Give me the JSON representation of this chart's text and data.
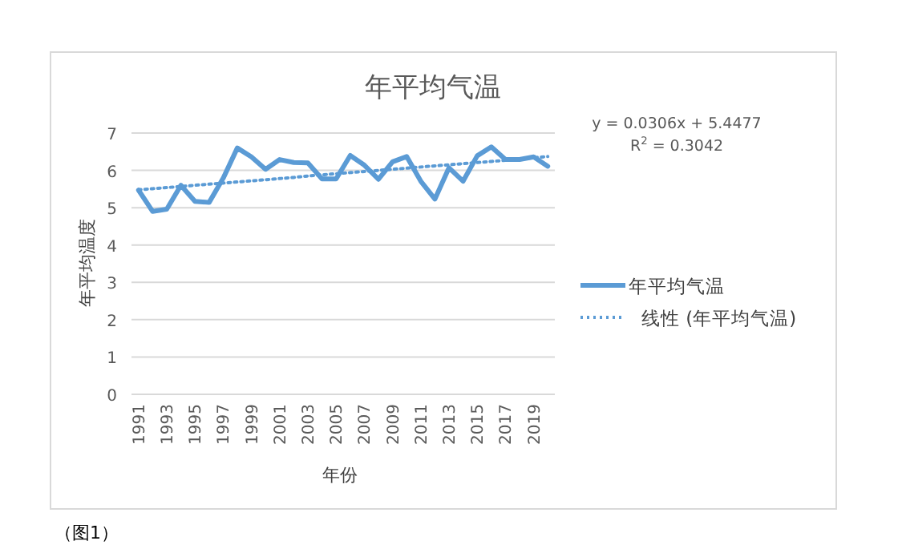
{
  "chart_data": {
    "type": "line",
    "title": "年平均气温",
    "xlabel": "年份",
    "ylabel": "年平均温度",
    "categories": [
      "1991",
      null,
      "1993",
      null,
      "1995",
      null,
      "1997",
      null,
      "1999",
      null,
      "2001",
      null,
      "2003",
      null,
      "2005",
      null,
      "2007",
      null,
      "2009",
      null,
      "2011",
      null,
      "2013",
      null,
      "2015",
      null,
      "2017",
      null,
      "2019",
      null
    ],
    "series": [
      {
        "name": "年平均气温",
        "color": "#5b9bd5",
        "line_style": "solid",
        "values": [
          5.47,
          4.9,
          4.96,
          5.6,
          5.17,
          5.14,
          5.79,
          6.6,
          6.36,
          6.03,
          6.29,
          6.21,
          6.2,
          5.77,
          5.77,
          6.4,
          6.14,
          5.76,
          6.23,
          6.37,
          5.71,
          5.23,
          6.07,
          5.71,
          6.39,
          6.63,
          6.29,
          6.29,
          6.36,
          6.11
        ]
      },
      {
        "name": "线性 (年平均气温)",
        "color": "#5b9bd5",
        "line_style": "dotted",
        "values": [
          5.48,
          5.51,
          5.54,
          5.57,
          5.6,
          5.63,
          5.66,
          5.69,
          5.72,
          5.75,
          5.78,
          5.81,
          5.85,
          5.88,
          5.91,
          5.94,
          5.97,
          6.0,
          6.03,
          6.06,
          6.09,
          6.12,
          6.15,
          6.18,
          6.21,
          6.24,
          6.27,
          6.3,
          6.34,
          6.37
        ]
      }
    ],
    "ylim": [
      0,
      7
    ],
    "yticks": [
      0,
      1,
      2,
      3,
      4,
      5,
      6,
      7
    ],
    "grid": "y",
    "legend": "right",
    "marker": "none",
    "annotations": [
      "y = 0.0306x + 5.4477",
      "R$^{2}$ = 0.3042",
      "（图1）"
    ]
  }
}
